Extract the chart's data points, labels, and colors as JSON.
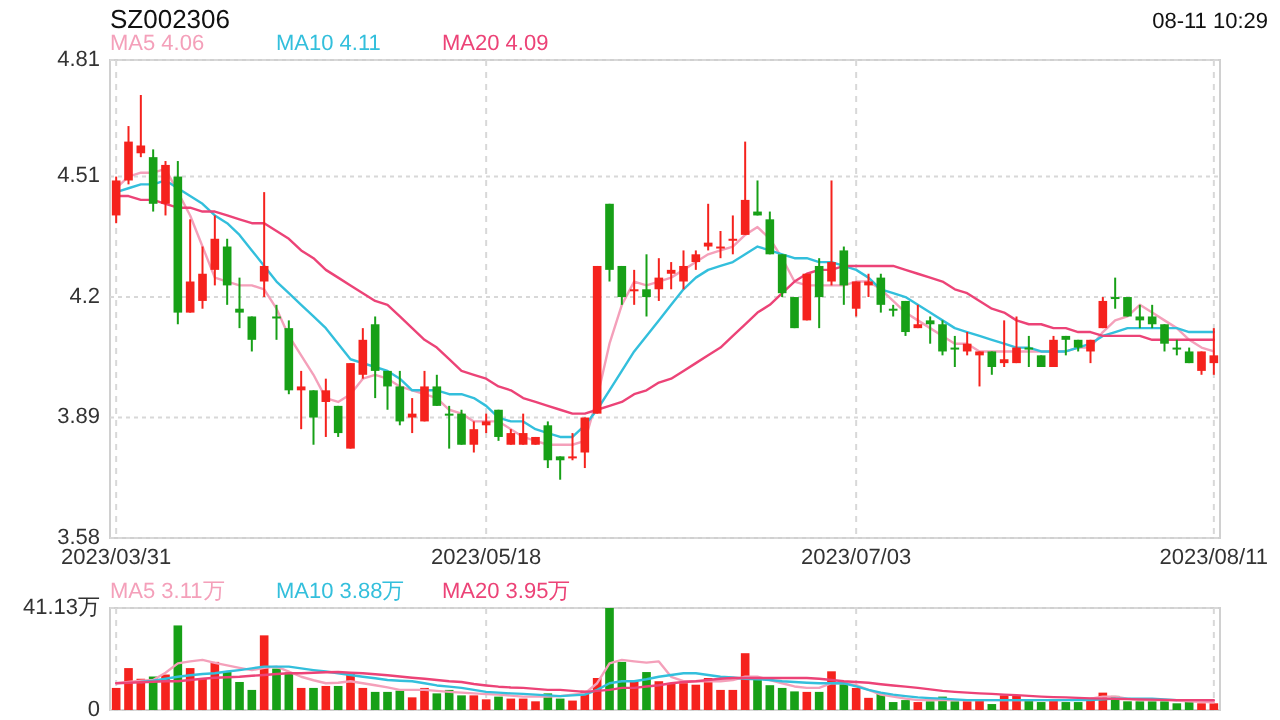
{
  "chart_data": [
    {
      "type": "candlestick",
      "title": "SZ002306",
      "annotations": [
        "08-11 10:29"
      ],
      "categories": [
        "2023/03/31",
        null,
        null,
        null,
        null,
        null,
        null,
        null,
        null,
        null,
        null,
        null,
        null,
        null,
        null,
        null,
        null,
        null,
        null,
        null,
        null,
        null,
        null,
        null,
        null,
        null,
        null,
        null,
        null,
        null,
        "2023/05/18",
        null,
        null,
        null,
        null,
        null,
        null,
        null,
        null,
        null,
        null,
        null,
        null,
        null,
        null,
        null,
        null,
        null,
        null,
        null,
        null,
        null,
        null,
        null,
        null,
        null,
        null,
        null,
        null,
        null,
        "2023/07/03",
        null,
        null,
        null,
        null,
        null,
        null,
        null,
        null,
        null,
        null,
        null,
        null,
        null,
        null,
        null,
        null,
        null,
        null,
        null,
        null,
        null,
        null,
        null,
        null,
        null,
        null,
        null,
        null,
        "2023/08/11"
      ],
      "ohlc": [
        [
          4.41,
          4.51,
          4.39,
          4.5
        ],
        [
          4.5,
          4.64,
          4.49,
          4.6
        ],
        [
          4.57,
          4.72,
          4.56,
          4.59
        ],
        [
          4.56,
          4.58,
          4.42,
          4.44
        ],
        [
          4.44,
          4.55,
          4.41,
          4.54
        ],
        [
          4.51,
          4.55,
          4.13,
          4.16
        ],
        [
          4.16,
          4.4,
          4.16,
          4.24
        ],
        [
          4.19,
          4.33,
          4.17,
          4.26
        ],
        [
          4.27,
          4.41,
          4.23,
          4.35
        ],
        [
          4.33,
          4.35,
          4.18,
          4.23
        ],
        [
          4.17,
          4.25,
          4.12,
          4.16
        ],
        [
          4.15,
          4.15,
          4.06,
          4.09
        ],
        [
          4.24,
          4.47,
          4.2,
          4.28
        ],
        [
          4.15,
          4.18,
          4.09,
          4.15
        ],
        [
          4.12,
          4.14,
          3.95,
          3.96
        ],
        [
          3.96,
          4.01,
          3.86,
          3.97
        ],
        [
          3.96,
          3.96,
          3.82,
          3.89
        ],
        [
          3.93,
          3.99,
          3.84,
          3.96
        ],
        [
          3.92,
          3.92,
          3.84,
          3.85
        ],
        [
          3.81,
          4.03,
          3.81,
          4.03
        ],
        [
          4.0,
          4.12,
          3.99,
          4.09
        ],
        [
          4.13,
          4.15,
          3.94,
          4.01
        ],
        [
          4.01,
          4.01,
          3.91,
          3.97
        ],
        [
          3.97,
          4.01,
          3.87,
          3.88
        ],
        [
          3.89,
          3.94,
          3.85,
          3.9
        ],
        [
          3.88,
          4.01,
          3.88,
          3.97
        ],
        [
          3.97,
          4.0,
          3.92,
          3.92
        ],
        [
          3.9,
          3.92,
          3.81,
          3.9
        ],
        [
          3.9,
          3.91,
          3.82,
          3.82
        ],
        [
          3.82,
          3.88,
          3.8,
          3.86
        ],
        [
          3.87,
          3.9,
          3.85,
          3.88
        ],
        [
          3.91,
          3.91,
          3.83,
          3.84
        ],
        [
          3.82,
          3.86,
          3.82,
          3.85
        ],
        [
          3.82,
          3.9,
          3.82,
          3.85
        ],
        [
          3.82,
          3.84,
          3.82,
          3.84
        ],
        [
          3.87,
          3.88,
          3.76,
          3.78
        ],
        [
          3.79,
          3.79,
          3.73,
          3.78
        ],
        [
          3.79,
          3.85,
          3.78,
          3.79
        ],
        [
          3.8,
          3.89,
          3.76,
          3.89
        ],
        [
          3.9,
          4.28,
          3.9,
          4.28
        ],
        [
          4.44,
          4.44,
          4.24,
          4.27
        ],
        [
          4.28,
          4.28,
          4.18,
          4.2
        ],
        [
          4.22,
          4.27,
          4.18,
          4.22
        ],
        [
          4.22,
          4.31,
          4.15,
          4.2
        ],
        [
          4.22,
          4.3,
          4.19,
          4.25
        ],
        [
          4.26,
          4.29,
          4.22,
          4.27
        ],
        [
          4.24,
          4.32,
          4.22,
          4.28
        ],
        [
          4.29,
          4.32,
          4.27,
          4.31
        ],
        [
          4.33,
          4.44,
          4.32,
          4.34
        ],
        [
          4.33,
          4.37,
          4.3,
          4.33
        ],
        [
          4.35,
          4.41,
          4.31,
          4.35
        ],
        [
          4.36,
          4.6,
          4.36,
          4.45
        ],
        [
          4.42,
          4.5,
          4.41,
          4.41
        ],
        [
          4.4,
          4.42,
          4.31,
          4.31
        ],
        [
          4.31,
          4.31,
          4.2,
          4.21
        ],
        [
          4.2,
          4.2,
          4.12,
          4.12
        ],
        [
          4.14,
          4.26,
          4.14,
          4.26
        ],
        [
          4.28,
          4.3,
          4.12,
          4.2
        ],
        [
          4.24,
          4.5,
          4.23,
          4.29
        ],
        [
          4.32,
          4.33,
          4.18,
          4.23
        ],
        [
          4.17,
          4.24,
          4.15,
          4.24
        ],
        [
          4.23,
          4.26,
          4.2,
          4.24
        ],
        [
          4.25,
          4.26,
          4.16,
          4.18
        ],
        [
          4.17,
          4.18,
          4.15,
          4.17
        ],
        [
          4.19,
          4.19,
          4.1,
          4.11
        ],
        [
          4.12,
          4.18,
          4.12,
          4.13
        ],
        [
          4.14,
          4.15,
          4.08,
          4.13
        ],
        [
          4.13,
          4.14,
          4.05,
          4.06
        ],
        [
          4.07,
          4.1,
          4.02,
          4.07
        ],
        [
          4.06,
          4.11,
          4.05,
          4.08
        ],
        [
          4.05,
          4.06,
          3.97,
          4.06
        ],
        [
          4.06,
          4.06,
          4.0,
          4.02
        ],
        [
          4.03,
          4.14,
          4.02,
          4.04
        ],
        [
          4.03,
          4.15,
          4.03,
          4.07
        ],
        [
          4.07,
          4.1,
          4.02,
          4.07
        ],
        [
          4.05,
          4.05,
          4.02,
          4.02
        ],
        [
          4.02,
          4.1,
          4.02,
          4.09
        ],
        [
          4.1,
          4.1,
          4.05,
          4.09
        ],
        [
          4.09,
          4.09,
          4.06,
          4.07
        ],
        [
          4.06,
          4.09,
          4.03,
          4.09
        ],
        [
          4.12,
          4.2,
          4.12,
          4.19
        ],
        [
          4.2,
          4.25,
          4.17,
          4.2
        ],
        [
          4.2,
          4.2,
          4.15,
          4.15
        ],
        [
          4.15,
          4.18,
          4.12,
          4.14
        ],
        [
          4.15,
          4.18,
          4.12,
          4.13
        ],
        [
          4.13,
          4.13,
          4.06,
          4.08
        ],
        [
          4.07,
          4.09,
          4.05,
          4.07
        ],
        [
          4.06,
          4.07,
          4.03,
          4.03
        ],
        [
          4.01,
          4.06,
          4.0,
          4.06
        ],
        [
          4.03,
          4.12,
          4.0,
          4.05
        ]
      ],
      "colors": [
        "#f5221d",
        "#f5221d",
        "#f5221d",
        "#17a017",
        "#f5221d",
        "#17a017",
        "#f5221d",
        "#f5221d",
        "#f5221d",
        "#17a017",
        "#17a017",
        "#17a017",
        "#f5221d",
        "#17a017",
        "#17a017",
        "#f5221d",
        "#17a017",
        "#f5221d",
        "#17a017",
        "#f5221d",
        "#f5221d",
        "#17a017",
        "#17a017",
        "#17a017",
        "#f5221d",
        "#f5221d",
        "#17a017",
        "#17a017",
        "#17a017",
        "#f5221d",
        "#f5221d",
        "#17a017",
        "#f5221d",
        "#f5221d",
        "#f5221d",
        "#17a017",
        "#17a017",
        "#f5221d",
        "#f5221d",
        "#f5221d",
        "#17a017",
        "#17a017",
        "#f5221d",
        "#17a017",
        "#f5221d",
        "#f5221d",
        "#f5221d",
        "#f5221d",
        "#f5221d",
        "#f5221d",
        "#f5221d",
        "#f5221d",
        "#17a017",
        "#17a017",
        "#17a017",
        "#17a017",
        "#f5221d",
        "#17a017",
        "#f5221d",
        "#17a017",
        "#f5221d",
        "#f5221d",
        "#17a017",
        "#17a017",
        "#17a017",
        "#f5221d",
        "#17a017",
        "#17a017",
        "#17a017",
        "#f5221d",
        "#f5221d",
        "#17a017",
        "#f5221d",
        "#f5221d",
        "#17a017",
        "#17a017",
        "#f5221d",
        "#17a017",
        "#17a017",
        "#f5221d",
        "#f5221d",
        "#17a017",
        "#17a017",
        "#17a017",
        "#17a017",
        "#17a017",
        "#17a017",
        "#17a017",
        "#f5221d",
        "#f5221d"
      ],
      "series": [
        {
          "name": "MA5 4.06",
          "type": "line",
          "color": "#f4a0ba",
          "values": [
            4.48,
            4.51,
            4.52,
            4.52,
            4.53,
            4.47,
            4.41,
            4.33,
            4.25,
            4.24,
            4.23,
            4.23,
            4.22,
            4.17,
            4.1,
            4.05,
            4.0,
            3.94,
            3.93,
            3.95,
            3.99,
            4.0,
            3.99,
            3.97,
            3.96,
            3.95,
            3.94,
            3.91,
            3.9,
            3.88,
            3.88,
            3.88,
            3.86,
            3.84,
            3.83,
            3.82,
            3.82,
            3.82,
            3.83,
            3.94,
            4.08,
            4.18,
            4.24,
            4.23,
            4.24,
            4.25,
            4.27,
            4.29,
            4.31,
            4.32,
            4.33,
            4.36,
            4.38,
            4.35,
            4.3,
            4.24,
            4.23,
            4.23,
            4.23,
            4.23,
            4.24,
            4.24,
            4.22,
            4.19,
            4.16,
            4.14,
            4.12,
            4.1,
            4.08,
            4.08,
            4.06,
            4.06,
            4.06,
            4.06,
            4.06,
            4.06,
            4.06,
            4.06,
            4.07,
            4.07,
            4.11,
            4.14,
            4.15,
            4.18,
            4.16,
            4.14,
            4.12,
            4.09,
            4.07,
            4.06
          ]
        },
        {
          "name": "MA10 4.11",
          "type": "line",
          "color": "#33bfdc",
          "values": [
            4.47,
            4.48,
            4.49,
            4.49,
            4.5,
            4.48,
            4.46,
            4.44,
            4.41,
            4.39,
            4.36,
            4.32,
            4.28,
            4.24,
            4.21,
            4.18,
            4.15,
            4.12,
            4.08,
            4.04,
            4.03,
            4.02,
            4.01,
            3.99,
            3.96,
            3.96,
            3.96,
            3.95,
            3.95,
            3.94,
            3.92,
            3.89,
            3.88,
            3.88,
            3.86,
            3.85,
            3.84,
            3.84,
            3.87,
            3.91,
            3.96,
            4.01,
            4.06,
            4.1,
            4.14,
            4.18,
            4.22,
            4.25,
            4.27,
            4.28,
            4.29,
            4.31,
            4.33,
            4.32,
            4.31,
            4.3,
            4.3,
            4.29,
            4.29,
            4.28,
            4.27,
            4.25,
            4.22,
            4.21,
            4.2,
            4.18,
            4.16,
            4.14,
            4.12,
            4.11,
            4.1,
            4.09,
            4.08,
            4.07,
            4.07,
            4.06,
            4.06,
            4.06,
            4.07,
            4.08,
            4.1,
            4.11,
            4.12,
            4.12,
            4.12,
            4.12,
            4.12,
            4.11,
            4.11,
            4.11
          ]
        },
        {
          "name": "MA20 4.09",
          "type": "line",
          "color": "#ec4377",
          "values": [
            4.46,
            4.46,
            4.45,
            4.45,
            4.44,
            4.43,
            4.43,
            4.42,
            4.42,
            4.41,
            4.4,
            4.39,
            4.39,
            4.37,
            4.35,
            4.32,
            4.3,
            4.27,
            4.25,
            4.23,
            4.21,
            4.19,
            4.18,
            4.15,
            4.12,
            4.09,
            4.07,
            4.04,
            4.01,
            4.0,
            3.99,
            3.97,
            3.96,
            3.94,
            3.93,
            3.92,
            3.91,
            3.9,
            3.9,
            3.91,
            3.92,
            3.93,
            3.95,
            3.96,
            3.98,
            3.99,
            4.01,
            4.03,
            4.05,
            4.07,
            4.1,
            4.13,
            4.16,
            4.18,
            4.21,
            4.24,
            4.26,
            4.27,
            4.27,
            4.28,
            4.28,
            4.28,
            4.28,
            4.28,
            4.27,
            4.26,
            4.25,
            4.24,
            4.22,
            4.21,
            4.19,
            4.17,
            4.16,
            4.14,
            4.13,
            4.13,
            4.12,
            4.12,
            4.11,
            4.11,
            4.1,
            4.1,
            4.1,
            4.1,
            4.09,
            4.09,
            4.09,
            4.09,
            4.09,
            4.09
          ]
        }
      ],
      "ylim": [
        3.58,
        4.81
      ],
      "yticks": [
        3.58,
        3.89,
        4.2,
        4.51,
        4.81
      ],
      "grid": true,
      "legend": "top left"
    },
    {
      "type": "bar",
      "categories": [
        "2023/03/31",
        null,
        null,
        null,
        null,
        null,
        null,
        null,
        null,
        null,
        null,
        null,
        null,
        null,
        null,
        null,
        null,
        null,
        null,
        null,
        null,
        null,
        null,
        null,
        null,
        null,
        null,
        null,
        null,
        null,
        "2023/05/18",
        null,
        null,
        null,
        null,
        null,
        null,
        null,
        null,
        null,
        null,
        null,
        null,
        null,
        null,
        null,
        null,
        null,
        null,
        null,
        null,
        null,
        null,
        null,
        null,
        null,
        null,
        null,
        null,
        null,
        "2023/07/03",
        null,
        null,
        null,
        null,
        null,
        null,
        null,
        null,
        null,
        null,
        null,
        null,
        null,
        null,
        null,
        null,
        null,
        null,
        null,
        null,
        null,
        null,
        null,
        null,
        null,
        null,
        null,
        null,
        "2023/08/11"
      ],
      "values": [
        8.9,
        16.9,
        12.6,
        13.5,
        14.3,
        34.1,
        16.9,
        12.9,
        19.4,
        15.3,
        11.3,
        8.1,
        30.1,
        16.7,
        15.1,
        8.9,
        8.9,
        9.7,
        9.7,
        14.8,
        8.9,
        7.3,
        7.3,
        7.8,
        5.1,
        8.9,
        6.7,
        8.1,
        5.9,
        5.9,
        4.3,
        5.4,
        4.6,
        4.6,
        3.5,
        6.7,
        4.6,
        3.8,
        7.8,
        12.9,
        41.13,
        19.4,
        11.6,
        15.3,
        11.6,
        10.8,
        10.8,
        10.2,
        12.9,
        8.1,
        8.1,
        22.9,
        12.9,
        10.0,
        8.9,
        7.5,
        7.3,
        7.3,
        15.6,
        11.0,
        8.9,
        4.9,
        6.5,
        3.2,
        4.0,
        3.2,
        3.5,
        5.4,
        3.5,
        3.5,
        3.8,
        2.4,
        5.9,
        5.9,
        4.0,
        3.2,
        4.0,
        3.2,
        3.2,
        3.8,
        7.0,
        5.7,
        3.5,
        3.5,
        3.5,
        3.5,
        2.7,
        3.5,
        2.7,
        2.7
      ],
      "colors": [
        "#f5221d",
        "#f5221d",
        "#f5221d",
        "#17a017",
        "#f5221d",
        "#17a017",
        "#f5221d",
        "#f5221d",
        "#f5221d",
        "#17a017",
        "#17a017",
        "#17a017",
        "#f5221d",
        "#17a017",
        "#17a017",
        "#f5221d",
        "#17a017",
        "#f5221d",
        "#17a017",
        "#f5221d",
        "#f5221d",
        "#17a017",
        "#17a017",
        "#17a017",
        "#f5221d",
        "#f5221d",
        "#17a017",
        "#17a017",
        "#17a017",
        "#f5221d",
        "#f5221d",
        "#17a017",
        "#f5221d",
        "#f5221d",
        "#f5221d",
        "#17a017",
        "#17a017",
        "#f5221d",
        "#f5221d",
        "#f5221d",
        "#17a017",
        "#17a017",
        "#f5221d",
        "#17a017",
        "#f5221d",
        "#f5221d",
        "#f5221d",
        "#f5221d",
        "#f5221d",
        "#f5221d",
        "#f5221d",
        "#f5221d",
        "#17a017",
        "#17a017",
        "#17a017",
        "#17a017",
        "#f5221d",
        "#17a017",
        "#f5221d",
        "#17a017",
        "#f5221d",
        "#f5221d",
        "#17a017",
        "#17a017",
        "#17a017",
        "#f5221d",
        "#17a017",
        "#17a017",
        "#17a017",
        "#f5221d",
        "#f5221d",
        "#17a017",
        "#f5221d",
        "#f5221d",
        "#17a017",
        "#17a017",
        "#f5221d",
        "#17a017",
        "#17a017",
        "#f5221d",
        "#f5221d",
        "#17a017",
        "#17a017",
        "#17a017",
        "#17a017",
        "#17a017",
        "#17a017",
        "#17a017",
        "#f5221d",
        "#f5221d"
      ],
      "series": [
        {
          "name": "MA5 3.11万",
          "type": "line",
          "color": "#f4a0ba",
          "values": [
            10.8,
            11.3,
            11.8,
            12.1,
            15.0,
            18.8,
            19.6,
            20.2,
            19.0,
            18.0,
            17.0,
            16.1,
            17.0,
            17.5,
            15.5,
            13.4,
            12.0,
            10.8,
            11.0,
            11.6,
            10.8,
            10.0,
            9.1,
            8.1,
            8.1,
            8.1,
            7.7,
            7.3,
            7.0,
            6.7,
            6.4,
            6.2,
            5.8,
            5.4,
            5.4,
            5.4,
            5.6,
            6.2,
            6.7,
            10.8,
            18.8,
            20.2,
            19.6,
            19.1,
            19.6,
            13.4,
            11.6,
            11.6,
            11.6,
            11.6,
            12.1,
            13.4,
            13.4,
            12.1,
            10.8,
            9.5,
            8.9,
            8.9,
            10.8,
            10.8,
            10.0,
            8.1,
            6.2,
            5.4,
            4.6,
            4.0,
            4.0,
            4.0,
            4.0,
            4.0,
            4.0,
            4.0,
            4.0,
            4.0,
            4.0,
            4.0,
            4.0,
            4.0,
            4.3,
            4.6,
            5.4,
            5.4,
            4.6,
            4.0,
            4.0,
            4.0,
            3.8,
            3.5,
            3.3,
            3.11
          ]
        },
        {
          "name": "MA10 3.88万",
          "type": "line",
          "color": "#33bfdc",
          "values": [
            null,
            null,
            11.3,
            11.8,
            12.6,
            13.4,
            14.0,
            14.5,
            14.8,
            15.5,
            16.1,
            16.8,
            17.5,
            17.5,
            17.5,
            16.8,
            16.1,
            15.5,
            14.8,
            14.1,
            13.4,
            12.8,
            12.1,
            11.8,
            11.6,
            10.8,
            9.9,
            9.4,
            8.9,
            8.1,
            7.3,
            7.0,
            6.7,
            6.5,
            6.2,
            5.9,
            5.6,
            5.9,
            6.2,
            8.1,
            10.8,
            11.6,
            11.6,
            12.4,
            13.4,
            14.1,
            14.8,
            14.8,
            14.1,
            13.4,
            13.1,
            12.6,
            12.4,
            12.1,
            11.6,
            11.3,
            11.0,
            10.8,
            10.8,
            10.8,
            9.5,
            8.1,
            7.0,
            6.2,
            5.6,
            5.1,
            4.8,
            4.6,
            4.3,
            4.0,
            4.0,
            4.0,
            4.0,
            4.0,
            4.0,
            4.0,
            4.0,
            4.0,
            4.0,
            4.0,
            4.3,
            4.6,
            4.6,
            4.6,
            4.6,
            4.3,
            4.0,
            null,
            null,
            null
          ]
        },
        {
          "name": "MA20 3.95万",
          "type": "line",
          "color": "#ec4377",
          "values": [
            10.8,
            11.0,
            11.2,
            11.4,
            11.6,
            11.6,
            12.1,
            12.6,
            13.0,
            13.2,
            13.4,
            13.8,
            14.1,
            14.5,
            14.8,
            14.8,
            15.0,
            15.2,
            15.3,
            15.0,
            14.8,
            14.4,
            14.0,
            13.5,
            13.0,
            12.6,
            12.1,
            11.6,
            11.3,
            10.5,
            9.9,
            9.4,
            9.1,
            8.9,
            8.5,
            8.1,
            8.1,
            7.7,
            7.3,
            7.7,
            8.1,
            8.9,
            8.9,
            9.5,
            10.0,
            10.8,
            11.3,
            11.6,
            12.1,
            12.6,
            12.9,
            12.9,
            12.9,
            12.9,
            12.9,
            12.9,
            12.9,
            12.6,
            12.1,
            11.6,
            11.3,
            11.0,
            10.4,
            9.9,
            9.4,
            8.9,
            8.3,
            7.7,
            7.3,
            7.0,
            6.7,
            6.5,
            6.2,
            6.0,
            5.7,
            5.4,
            5.2,
            5.1,
            4.9,
            4.7,
            4.6,
            4.5,
            4.4,
            4.3,
            4.2,
            4.1,
            4.0,
            4.0,
            4.0,
            3.95
          ]
        }
      ],
      "ylim": [
        0,
        41.13
      ],
      "yticks": [
        0,
        {
          "value": 41.13,
          "label": "41.13万"
        }
      ],
      "grid": true,
      "legend": "top left",
      "tick_labels": "y"
    }
  ]
}
